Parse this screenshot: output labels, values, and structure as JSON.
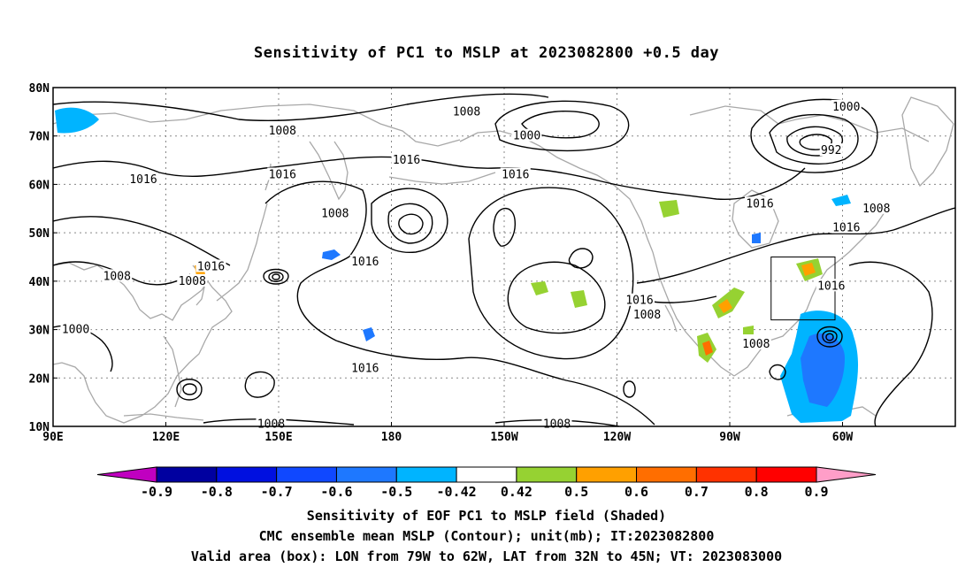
{
  "title": "Sensitivity of PC1 to MSLP at 2023082800 +0.5 day",
  "map": {
    "lat_labels": [
      "80N",
      "70N",
      "60N",
      "50N",
      "40N",
      "30N",
      "20N",
      "10N"
    ],
    "lat_values": [
      80,
      70,
      60,
      50,
      40,
      30,
      20,
      10
    ],
    "lon_labels": [
      "90E",
      "120E",
      "150E",
      "180",
      "150W",
      "120W",
      "90W",
      "60W"
    ],
    "lon_values": [
      90,
      120,
      150,
      180,
      210,
      240,
      270,
      300
    ],
    "lon_range": [
      90,
      330
    ],
    "lat_range": [
      10,
      80
    ],
    "contour_labels": [
      {
        "text": "1008",
        "lon": 151,
        "lat": 71
      },
      {
        "text": "1008",
        "lon": 200,
        "lat": 75
      },
      {
        "text": "1000",
        "lon": 216,
        "lat": 70
      },
      {
        "text": "1000",
        "lon": 301,
        "lat": 76
      },
      {
        "text": "992",
        "lon": 297,
        "lat": 67
      },
      {
        "text": "1016",
        "lon": 114,
        "lat": 61
      },
      {
        "text": "1016",
        "lon": 151,
        "lat": 62
      },
      {
        "text": "1016",
        "lon": 184,
        "lat": 65
      },
      {
        "text": "1016",
        "lon": 213,
        "lat": 62
      },
      {
        "text": "1016",
        "lon": 278,
        "lat": 56
      },
      {
        "text": "1008",
        "lon": 309,
        "lat": 55
      },
      {
        "text": "1008",
        "lon": 165,
        "lat": 54
      },
      {
        "text": "1016",
        "lon": 301,
        "lat": 51
      },
      {
        "text": "1016",
        "lon": 132,
        "lat": 43
      },
      {
        "text": "1016",
        "lon": 173,
        "lat": 44
      },
      {
        "text": "1008",
        "lon": 107,
        "lat": 41
      },
      {
        "text": "1008",
        "lon": 127,
        "lat": 40
      },
      {
        "text": "1016",
        "lon": 297,
        "lat": 39
      },
      {
        "text": "1016",
        "lon": 246,
        "lat": 36
      },
      {
        "text": "1008",
        "lon": 248,
        "lat": 33
      },
      {
        "text": "1000",
        "lon": 96,
        "lat": 30
      },
      {
        "text": "1008",
        "lon": 277,
        "lat": 27
      },
      {
        "text": "1016",
        "lon": 173,
        "lat": 22
      },
      {
        "text": "1008",
        "lon": 148,
        "lat": 10.5
      },
      {
        "text": "1008",
        "lon": 224,
        "lat": 10.5
      }
    ],
    "valid_box": {
      "lon_min": 281,
      "lon_max": 298,
      "lat_min": 32,
      "lat_max": 45
    }
  },
  "colorbar": {
    "labels": [
      "-0.9",
      "-0.8",
      "-0.7",
      "-0.6",
      "-0.5",
      "-0.42",
      "0.42",
      "0.5",
      "0.6",
      "0.7",
      "0.8",
      "0.9"
    ],
    "colors": [
      "#c000c0",
      "#0000a0",
      "#0010e0",
      "#1048ff",
      "#1e78ff",
      "#00b4ff",
      "#ffffff",
      "#96d232",
      "#ffa000",
      "#ff6e00",
      "#ff3200",
      "#ff0000",
      "#ff9ec8"
    ]
  },
  "captions": {
    "line1": "Sensitivity of EOF PC1 to MSLP field (Shaded)",
    "line2": "CMC ensemble mean MSLP (Contour); unit(mb); IT:2023082800",
    "line3": "Valid area (box): LON from 79W to 62W, LAT from 32N to 45N; VT: 2023083000"
  }
}
